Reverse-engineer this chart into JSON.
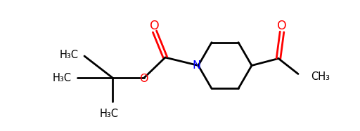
{
  "bg_color": "#ffffff",
  "line_color": "#000000",
  "O_color": "#ff0000",
  "N_color": "#0000ff",
  "line_width": 2.0,
  "font_size": 10.5,
  "figw": 5.12,
  "figh": 1.87,
  "dpi": 100,
  "xlim": [
    0,
    5.12
  ],
  "ylim": [
    0,
    1.87
  ]
}
